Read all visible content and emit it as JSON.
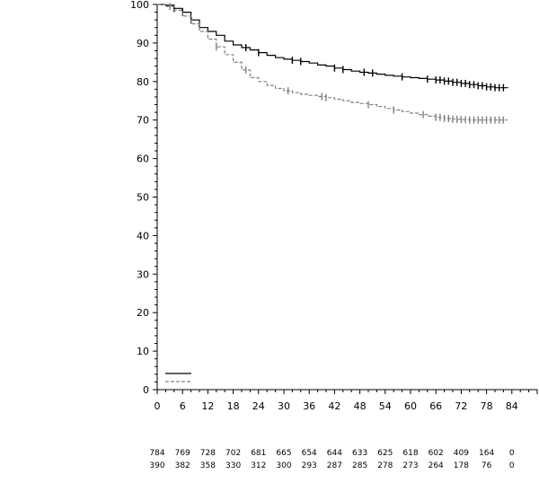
{
  "chart_data": {
    "type": "line",
    "title": "",
    "xlabel": "",
    "ylabel": "",
    "xlim": [
      0,
      90
    ],
    "ylim": [
      0,
      100
    ],
    "x_ticks": [
      0,
      6,
      12,
      18,
      24,
      30,
      36,
      42,
      48,
      54,
      60,
      66,
      72,
      78,
      84
    ],
    "y_ticks": [
      0,
      10,
      20,
      30,
      40,
      50,
      60,
      70,
      80,
      90,
      100
    ],
    "grid": false,
    "legend": "bottom-left",
    "series": [
      {
        "style": "solid",
        "color": "#000000",
        "points": [
          [
            0,
            100
          ],
          [
            2,
            99.8
          ],
          [
            4,
            99
          ],
          [
            6,
            98
          ],
          [
            8,
            96
          ],
          [
            10,
            94
          ],
          [
            12,
            93
          ],
          [
            14,
            92
          ],
          [
            16,
            90.5
          ],
          [
            18,
            89.5
          ],
          [
            20,
            88.8
          ],
          [
            22,
            88.2
          ],
          [
            24,
            87.5
          ],
          [
            26,
            86.8
          ],
          [
            28,
            86.2
          ],
          [
            30,
            85.8
          ],
          [
            32,
            85.5
          ],
          [
            34,
            85.2
          ],
          [
            36,
            84.8
          ],
          [
            38,
            84.3
          ],
          [
            40,
            84
          ],
          [
            42,
            83.5
          ],
          [
            44,
            83.1
          ],
          [
            46,
            82.7
          ],
          [
            48,
            82.4
          ],
          [
            50,
            82.2
          ],
          [
            52,
            81.9
          ],
          [
            54,
            81.6
          ],
          [
            56,
            81.4
          ],
          [
            58,
            81.2
          ],
          [
            60,
            81
          ],
          [
            62,
            80.8
          ],
          [
            64,
            80.6
          ],
          [
            66,
            80.4
          ],
          [
            68,
            80.1
          ],
          [
            70,
            79.8
          ],
          [
            72,
            79.5
          ],
          [
            74,
            79.2
          ],
          [
            76,
            78.9
          ],
          [
            78,
            78.6
          ],
          [
            80,
            78.4
          ],
          [
            83,
            78.3
          ]
        ],
        "censor_x": [
          4,
          6,
          8,
          21,
          24,
          32,
          34,
          42,
          44,
          49,
          51,
          58,
          64,
          66,
          67,
          68,
          69,
          70,
          71,
          72,
          73,
          74,
          75,
          76,
          77,
          78,
          79,
          80,
          81,
          82
        ]
      },
      {
        "style": "dashed",
        "color": "#808080",
        "points": [
          [
            0,
            100
          ],
          [
            2,
            99.5
          ],
          [
            4,
            98.5
          ],
          [
            6,
            97
          ],
          [
            8,
            95
          ],
          [
            10,
            93
          ],
          [
            12,
            91
          ],
          [
            14,
            89
          ],
          [
            16,
            87
          ],
          [
            18,
            85
          ],
          [
            20,
            83
          ],
          [
            22,
            81
          ],
          [
            24,
            80
          ],
          [
            26,
            79
          ],
          [
            28,
            78.2
          ],
          [
            30,
            77.6
          ],
          [
            32,
            77.1
          ],
          [
            34,
            76.7
          ],
          [
            36,
            76.4
          ],
          [
            38,
            76.1
          ],
          [
            40,
            75.8
          ],
          [
            42,
            75.4
          ],
          [
            44,
            75
          ],
          [
            46,
            74.6
          ],
          [
            48,
            74.3
          ],
          [
            50,
            74
          ],
          [
            52,
            73.5
          ],
          [
            54,
            73
          ],
          [
            56,
            72.6
          ],
          [
            58,
            72.2
          ],
          [
            60,
            71.8
          ],
          [
            62,
            71.4
          ],
          [
            64,
            71
          ],
          [
            66,
            70.7
          ],
          [
            68,
            70.4
          ],
          [
            70,
            70.2
          ],
          [
            72,
            70.1
          ],
          [
            74,
            70
          ],
          [
            83,
            70
          ]
        ],
        "censor_x": [
          3,
          14,
          21,
          31,
          39,
          40,
          50,
          56,
          63,
          66,
          67,
          68,
          69,
          70,
          71,
          72,
          73,
          74,
          75,
          76,
          77,
          78,
          79,
          80,
          81,
          82
        ]
      }
    ],
    "risk_table": {
      "times": [
        0,
        6,
        12,
        18,
        24,
        30,
        36,
        42,
        48,
        54,
        60,
        66,
        72,
        78,
        84
      ],
      "rows": [
        [
          "784",
          "769",
          "728",
          "702",
          "681",
          "665",
          "654",
          "644",
          "633",
          "625",
          "618",
          "602",
          "409",
          "164",
          "0"
        ],
        [
          "390",
          "382",
          "358",
          "330",
          "312",
          "300",
          "293",
          "287",
          "285",
          "278",
          "273",
          "264",
          "178",
          "76",
          "0"
        ]
      ]
    }
  }
}
